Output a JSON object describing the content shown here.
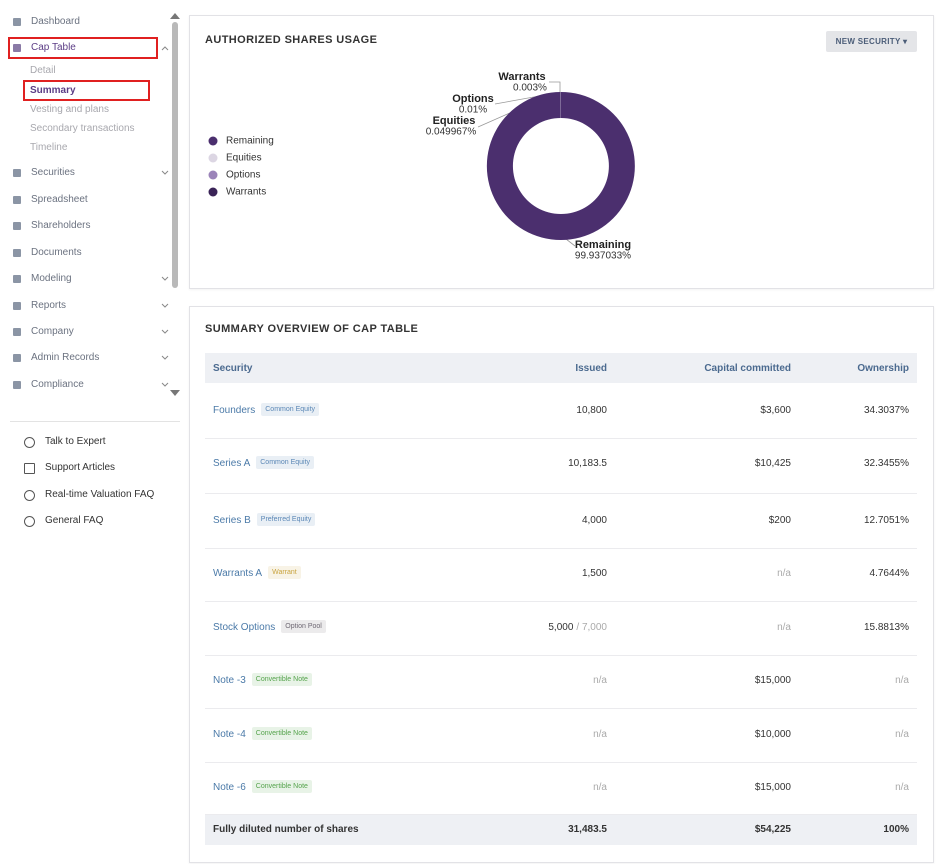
{
  "sidebar": {
    "nav": [
      "Dashboard",
      "Cap Table",
      "Securities",
      "Spreadsheet",
      "Shareholders",
      "Documents",
      "Modeling",
      "Reports",
      "Company",
      "Admin Records",
      "Compliance"
    ],
    "cap_table_sub": [
      "Detail",
      "Summary",
      "Vesting and plans",
      "Secondary transactions",
      "Timeline"
    ],
    "help_links": [
      "Talk to Expert",
      "Support Articles",
      "Real-time Valuation FAQ",
      "General FAQ"
    ]
  },
  "button": "NEW SECURITY",
  "chart_data": {
    "type": "pie",
    "donut": true,
    "title": "AUTHORIZED SHARES USAGE",
    "categories": [
      "Remaining",
      "Equities",
      "Options",
      "Warrants"
    ],
    "values": [
      99.937033,
      0.049967,
      0.01,
      0.003
    ],
    "value_labels": [
      "99.937033%",
      "0.049967%",
      "0.01%",
      "0.003%"
    ],
    "colors": [
      "#4b2f6e",
      "#dcd6e3",
      "#9b84b9",
      "#3a2357"
    ],
    "legend": "left"
  },
  "table": {
    "title": "SUMMARY OVERVIEW OF CAP TABLE",
    "columns": [
      "Security",
      "Issued",
      "Capital committed",
      "Ownership"
    ],
    "rows": [
      {
        "security": "Founders",
        "tag": "Common Equity",
        "tag_color": "#5b87b6",
        "issued": "10,800",
        "committed": "$3,600",
        "ownership": "34.3037%"
      },
      {
        "security": "Series A",
        "tag": "Common Equity",
        "tag_color": "#5b87b6",
        "issued": "10,183.5",
        "committed": "$10,425",
        "ownership": "32.3455%"
      },
      {
        "security": "Series B",
        "tag": "Preferred Equity",
        "tag_color": "#5b87b6",
        "issued": "4,000",
        "committed": "$200",
        "ownership": "12.7051%"
      },
      {
        "security": "Warrants A",
        "tag": "Warrant",
        "tag_color": "#c9a440",
        "issued": "1,500",
        "committed": "n/a",
        "ownership": "4.7644%"
      },
      {
        "security": "Stock Options",
        "tag": "Option Pool",
        "tag_color": "#6e6873",
        "issued": "5,000",
        "issued_total": "/ 7,000",
        "committed": "n/a",
        "ownership": "15.8813%"
      },
      {
        "security": "Note -3",
        "tag": "Convertible Note",
        "tag_color": "#55a34c",
        "issued": "n/a",
        "committed": "$15,000",
        "ownership": "n/a"
      },
      {
        "security": "Note -4",
        "tag": "Convertible Note",
        "tag_color": "#55a34c",
        "issued": "n/a",
        "committed": "$10,000",
        "ownership": "n/a"
      },
      {
        "security": "Note -6",
        "tag": "Convertible Note",
        "tag_color": "#55a34c",
        "issued": "n/a",
        "committed": "$15,000",
        "ownership": "n/a"
      }
    ],
    "total": {
      "label": "Fully diluted number of shares",
      "issued": "31,483.5",
      "committed": "$54,225",
      "ownership": "100%"
    }
  }
}
